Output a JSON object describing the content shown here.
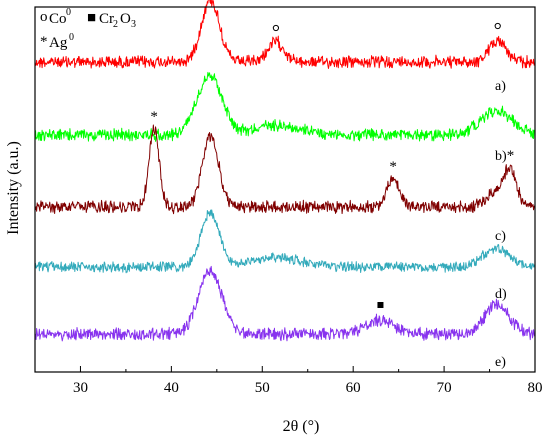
{
  "chart_data": {
    "type": "line",
    "xlabel": "2θ (°)",
    "ylabel": "Intensity (a.u.)",
    "xlim": [
      25,
      80
    ],
    "xticks": [
      30,
      40,
      50,
      60,
      70,
      80
    ],
    "yticks_shown": false,
    "legend": {
      "placement": "top-left",
      "entries": [
        {
          "symbol": "o",
          "species": "Co",
          "superscript": "0"
        },
        {
          "symbol": "■",
          "species": "Cr2O3",
          "parts": [
            "Cr",
            "2",
            "O",
            "3"
          ]
        },
        {
          "symbol": "*",
          "species": "Ag",
          "superscript": "0"
        }
      ]
    },
    "series": [
      {
        "name": "a)",
        "color": "#ff0000",
        "base": 94,
        "noise": 7,
        "peaks": [
          [
            44.3,
            1.0,
            62
          ],
          [
            51.5,
            0.9,
            20
          ],
          [
            75.9,
            0.9,
            22
          ]
        ]
      },
      {
        "name": "b)",
        "color": "#00ff00",
        "base": 84,
        "noise": 7,
        "peaks": [
          [
            44.2,
            1.4,
            60
          ],
          [
            51.5,
            2.5,
            10
          ],
          [
            75.8,
            1.8,
            24
          ]
        ]
      },
      {
        "name": "c)",
        "color": "#800000",
        "base": 75,
        "noise": 7,
        "peaks": [
          [
            38.1,
            0.55,
            78
          ],
          [
            44.3,
            0.9,
            70
          ],
          [
            64.4,
            0.7,
            28
          ],
          [
            77.3,
            0.7,
            34
          ],
          [
            75.8,
            1.0,
            15
          ]
        ]
      },
      {
        "name": "d)",
        "color": "#33aabb",
        "base": 71,
        "noise": 6,
        "peaks": [
          [
            44.3,
            1.0,
            55
          ],
          [
            51.5,
            2.5,
            10
          ],
          [
            75.8,
            1.5,
            18
          ]
        ]
      },
      {
        "name": "e)",
        "color": "#8833ee",
        "base": 77,
        "noise": 7,
        "peaks": [
          [
            44.3,
            1.3,
            63
          ],
          [
            63.0,
            1.5,
            14
          ],
          [
            75.8,
            1.3,
            30
          ]
        ]
      }
    ],
    "peak_markers": [
      {
        "series": "a)",
        "x": 44.3,
        "symbol": "o"
      },
      {
        "series": "a)",
        "x": 51.5,
        "symbol": "o"
      },
      {
        "series": "a)",
        "x": 75.9,
        "symbol": "o"
      },
      {
        "series": "c)",
        "x": 38.1,
        "symbol": "*"
      },
      {
        "series": "c)",
        "x": 64.4,
        "symbol": "*"
      },
      {
        "series": "c)",
        "x": 77.3,
        "symbol": "*"
      },
      {
        "series": "e)",
        "x": 63.0,
        "symbol": "■"
      }
    ]
  }
}
